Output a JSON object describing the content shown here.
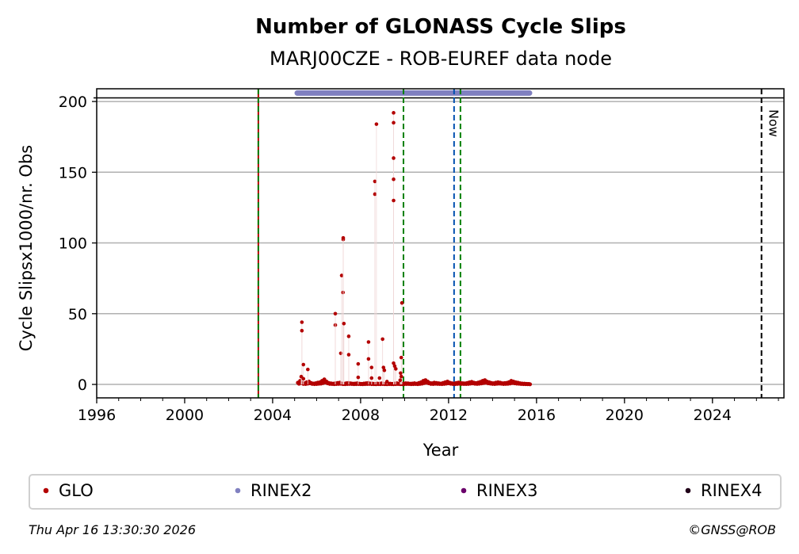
{
  "chart_data": {
    "type": "scatter",
    "title": "Number of GLONASS Cycle Slips",
    "subtitle": "MARJ00CZE - ROB-EUREF data node",
    "xlabel": "Year",
    "ylabel": "Cycle Slipsx1000/nr. Obs",
    "xlim": [
      1996,
      2027.25
    ],
    "ylim": [
      -9.5,
      209
    ],
    "xticks": [
      1996,
      2000,
      2004,
      2008,
      2012,
      2016,
      2020,
      2024
    ],
    "yticks": [
      0,
      50,
      100,
      150,
      200
    ],
    "grid": "y",
    "legend": {
      "placement": "bottom",
      "entries": [
        {
          "label": "GLO",
          "color": "#b30000"
        },
        {
          "label": "RINEX2",
          "color": "#8080c0"
        },
        {
          "label": "RINEX3",
          "color": "#6a006a"
        },
        {
          "label": "RINEX4",
          "color": "#200018"
        }
      ]
    },
    "series": [
      {
        "name": "GLO",
        "color": "#b30000",
        "points": [
          [
            2005.33,
            44
          ],
          [
            2005.33,
            38
          ],
          [
            2005.4,
            14
          ],
          [
            2005.6,
            10.6
          ],
          [
            2005.4,
            4
          ],
          [
            2005.3,
            5.5
          ],
          [
            2006.85,
            42
          ],
          [
            2006.85,
            50
          ],
          [
            2007.1,
            22
          ],
          [
            2007.14,
            77
          ],
          [
            2007.2,
            65
          ],
          [
            2007.21,
            102.5
          ],
          [
            2007.21,
            103.6
          ],
          [
            2007.24,
            43
          ],
          [
            2007.46,
            34
          ],
          [
            2007.46,
            21
          ],
          [
            2007.89,
            14.5
          ],
          [
            2007.89,
            5
          ],
          [
            2008.36,
            30
          ],
          [
            2008.36,
            18
          ],
          [
            2008.5,
            12
          ],
          [
            2008.5,
            4.5
          ],
          [
            2008.65,
            143.5
          ],
          [
            2008.65,
            134.5
          ],
          [
            2008.72,
            184
          ],
          [
            2008.86,
            4.5
          ],
          [
            2009.0,
            32
          ],
          [
            2009.04,
            12
          ],
          [
            2009.08,
            10
          ],
          [
            2009.2,
            2
          ],
          [
            2009.5,
            192
          ],
          [
            2009.5,
            185
          ],
          [
            2009.5,
            160
          ],
          [
            2009.5,
            145
          ],
          [
            2009.5,
            130
          ],
          [
            2009.5,
            15
          ],
          [
            2009.55,
            13
          ],
          [
            2009.6,
            11
          ],
          [
            2009.88,
            57.6
          ],
          [
            2009.85,
            19
          ],
          [
            2009.82,
            8
          ],
          [
            2009.85,
            5.6
          ],
          [
            2009.8,
            3
          ]
        ]
      }
    ],
    "baseline": {
      "start": 2005.15,
      "step": 0.1,
      "values": [
        1.2,
        2.5,
        1,
        0.8,
        1.5,
        2,
        1,
        0.6,
        0.8,
        1.2,
        1.5,
        2.5,
        3.5,
        2,
        1,
        0.7,
        0.5,
        0.8,
        1,
        1.2,
        0.6,
        0.5,
        0.8,
        1,
        0.7,
        0.5,
        0.6,
        0.8,
        0.5,
        0.4,
        0.6,
        0.8,
        1,
        0.6,
        0.5,
        0.4,
        0.6,
        0.5,
        0.7,
        0.5,
        0.4,
        0.6,
        0.5,
        0.4,
        0.6,
        0.8,
        0.5,
        0.4,
        0.6,
        0.8,
        0.7,
        0.5,
        0.6,
        0.8,
        0.5,
        1,
        1.5,
        2.5,
        3,
        2,
        1,
        0.8,
        1.2,
        1,
        0.8,
        0.6,
        1,
        1.5,
        2,
        1.2,
        0.8,
        0.6,
        1,
        1.3,
        1,
        0.8,
        0.7,
        1,
        1.4,
        1.8,
        1.2,
        0.9,
        1.3,
        1.8,
        2.5,
        3,
        2,
        1.5,
        1,
        0.8,
        1.2,
        1.5,
        1.2,
        0.8,
        0.9,
        1.1,
        1.6,
        2.5,
        2,
        1.5,
        1.2,
        0.8,
        0.6,
        0.5,
        0.4,
        0.3
      ]
    },
    "rinex2_span": [
      2005.12,
      2015.68
    ],
    "rinex2_level": 206,
    "ref_line": 202,
    "vlines": [
      {
        "x": 2003.35,
        "color": "#b30000",
        "color2": "#008000",
        "style": "dashed"
      },
      {
        "x": 2009.95,
        "color": "#008000",
        "style": "dashed"
      },
      {
        "x": 2012.25,
        "color": "#0050b0",
        "style": "dashed"
      },
      {
        "x": 2012.54,
        "color": "#008000",
        "style": "dashed"
      },
      {
        "x": 2026.23,
        "color": "#000000",
        "style": "dashed",
        "label": "Now"
      }
    ]
  },
  "footer": {
    "timestamp": "Thu Apr 16 13:30:30 2026",
    "copyright": "©GNSS@ROB"
  }
}
